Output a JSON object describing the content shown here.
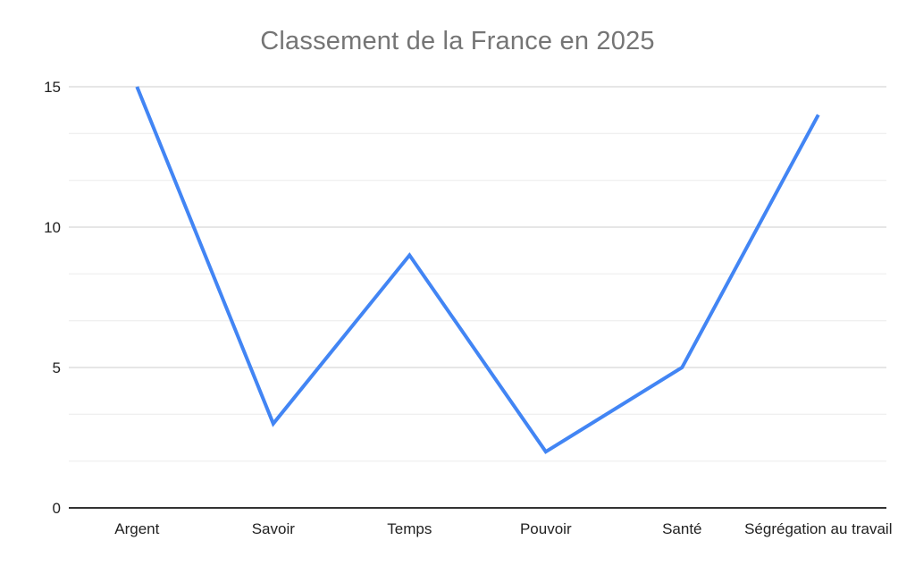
{
  "chart_data": {
    "type": "line",
    "title": "Classement de la France en 2025",
    "categories": [
      "Argent",
      "Savoir",
      "Temps",
      "Pouvoir",
      "Santé",
      "Ségrégation au travail"
    ],
    "values": [
      15,
      3,
      9,
      2,
      5,
      14
    ],
    "xlabel": "",
    "ylabel": "",
    "ylim": [
      0,
      15
    ],
    "yticks": [
      0,
      5,
      10,
      15
    ],
    "minor_gridlines_per_major": 3,
    "grid": "on",
    "legend": "none",
    "colors": {
      "line": "#4285f4",
      "title": "#757575",
      "axis_labels": "#222222",
      "major_gridline": "#cccccc",
      "minor_gridline": "#ebebeb",
      "axis_baseline": "#333333",
      "background": "#ffffff"
    }
  }
}
